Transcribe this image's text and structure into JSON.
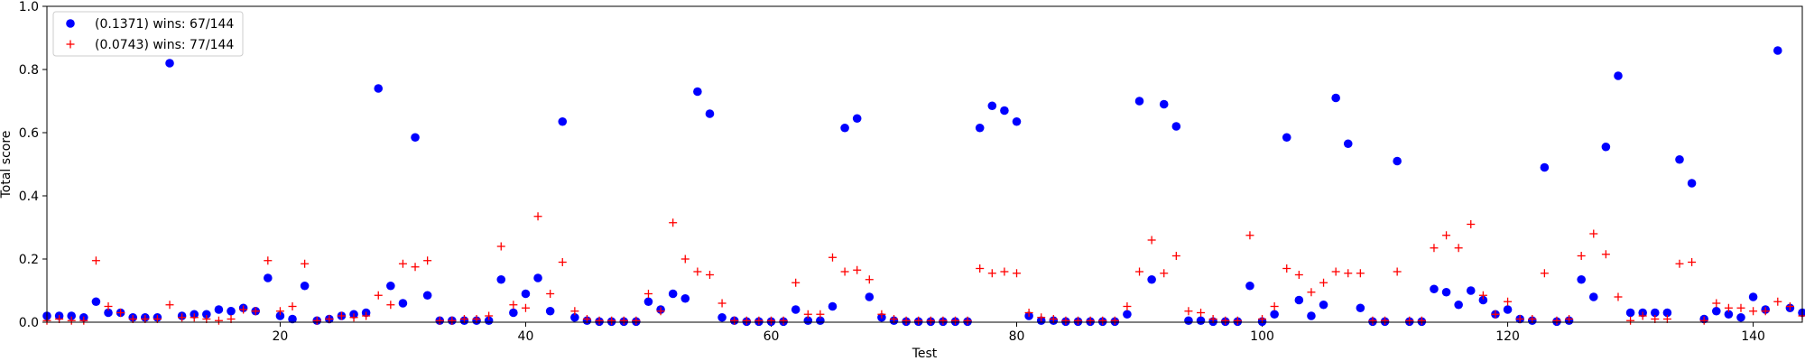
{
  "chart_data": {
    "type": "scatter",
    "title": "",
    "xlabel": "Test",
    "ylabel": "Total score",
    "xlim": [
      1,
      144
    ],
    "ylim": [
      0,
      1.0
    ],
    "xticks": [
      20,
      40,
      60,
      80,
      100,
      120,
      140
    ],
    "yticks": [
      0.0,
      0.2,
      0.4,
      0.6,
      0.8,
      1.0
    ],
    "ytick_labels": [
      "0.0",
      "0.2",
      "0.4",
      "0.6",
      "0.8",
      "1.0"
    ],
    "grid": false,
    "legend": "top-left",
    "series": [
      {
        "name": "(0.1371) wins: 67/144",
        "marker": "circle",
        "color": "#0000ff",
        "x": [
          1,
          2,
          3,
          4,
          5,
          6,
          7,
          8,
          9,
          10,
          11,
          12,
          13,
          14,
          15,
          16,
          17,
          18,
          19,
          20,
          21,
          22,
          23,
          24,
          25,
          26,
          27,
          28,
          29,
          30,
          31,
          32,
          33,
          34,
          35,
          36,
          37,
          38,
          39,
          40,
          41,
          42,
          43,
          44,
          45,
          46,
          47,
          48,
          49,
          50,
          51,
          52,
          53,
          54,
          55,
          56,
          57,
          58,
          59,
          60,
          61,
          62,
          63,
          64,
          65,
          66,
          67,
          68,
          69,
          70,
          71,
          72,
          73,
          74,
          75,
          76,
          77,
          78,
          79,
          80,
          81,
          82,
          83,
          84,
          85,
          86,
          87,
          88,
          89,
          90,
          91,
          92,
          93,
          94,
          95,
          96,
          97,
          98,
          99,
          100,
          101,
          102,
          103,
          104,
          105,
          106,
          107,
          108,
          109,
          110,
          111,
          112,
          113,
          114,
          115,
          116,
          117,
          118,
          119,
          120,
          121,
          122,
          123,
          124,
          125,
          126,
          127,
          128,
          129,
          130,
          131,
          132,
          133,
          134,
          135,
          136,
          137,
          138,
          139,
          140,
          141,
          142,
          143,
          144
        ],
        "y": [
          0.02,
          0.02,
          0.02,
          0.015,
          0.065,
          0.03,
          0.03,
          0.015,
          0.015,
          0.015,
          0.82,
          0.02,
          0.025,
          0.025,
          0.04,
          0.035,
          0.045,
          0.035,
          0.14,
          0.02,
          0.01,
          0.115,
          0.005,
          0.01,
          0.02,
          0.025,
          0.03,
          0.74,
          0.115,
          0.06,
          0.585,
          0.085,
          0.005,
          0.005,
          0.005,
          0.005,
          0.005,
          0.135,
          0.03,
          0.09,
          0.14,
          0.035,
          0.635,
          0.015,
          0.005,
          0.002,
          0.002,
          0.002,
          0.002,
          0.065,
          0.04,
          0.09,
          0.075,
          0.73,
          0.66,
          0.015,
          0.005,
          0.002,
          0.002,
          0.002,
          0.002,
          0.04,
          0.005,
          0.005,
          0.05,
          0.615,
          0.645,
          0.08,
          0.015,
          0.005,
          0.002,
          0.002,
          0.002,
          0.002,
          0.002,
          0.002,
          0.615,
          0.685,
          0.67,
          0.635,
          0.02,
          0.005,
          0.005,
          0.002,
          0.002,
          0.002,
          0.002,
          0.002,
          0.025,
          0.7,
          0.135,
          0.69,
          0.62,
          0.005,
          0.005,
          0.002,
          0.002,
          0.002,
          0.115,
          0.002,
          0.025,
          0.585,
          0.07,
          0.02,
          0.055,
          0.71,
          0.565,
          0.045,
          0.002,
          0.002,
          0.51,
          0.002,
          0.002,
          0.105,
          0.095,
          0.055,
          0.1,
          0.07,
          0.025,
          0.04,
          0.01,
          0.005,
          0.49,
          0.002,
          0.005,
          0.135,
          0.08,
          0.555,
          0.78,
          0.03,
          0.03,
          0.03,
          0.03,
          0.515,
          0.44,
          0.01,
          0.035,
          0.025,
          0.015,
          0.08,
          0.04,
          0.86,
          0.045,
          0.03
        ]
      },
      {
        "name": "(0.0743) wins: 77/144",
        "marker": "plus",
        "color": "#ff0000",
        "x": [
          1,
          2,
          3,
          4,
          5,
          6,
          7,
          8,
          9,
          10,
          11,
          12,
          13,
          14,
          15,
          16,
          17,
          18,
          19,
          20,
          21,
          22,
          23,
          24,
          25,
          26,
          27,
          28,
          29,
          30,
          31,
          32,
          33,
          34,
          35,
          36,
          37,
          38,
          39,
          40,
          41,
          42,
          43,
          44,
          45,
          46,
          47,
          48,
          49,
          50,
          51,
          52,
          53,
          54,
          55,
          56,
          57,
          58,
          59,
          60,
          61,
          62,
          63,
          64,
          65,
          66,
          67,
          68,
          69,
          70,
          71,
          72,
          73,
          74,
          75,
          76,
          77,
          78,
          79,
          80,
          81,
          82,
          83,
          84,
          85,
          86,
          87,
          88,
          89,
          90,
          91,
          92,
          93,
          94,
          95,
          96,
          97,
          98,
          99,
          100,
          101,
          102,
          103,
          104,
          105,
          106,
          107,
          108,
          109,
          110,
          111,
          112,
          113,
          114,
          115,
          116,
          117,
          118,
          119,
          120,
          121,
          122,
          123,
          124,
          125,
          126,
          127,
          128,
          129,
          130,
          131,
          132,
          133,
          134,
          135,
          136,
          137,
          138,
          139,
          140,
          141,
          142,
          143,
          144
        ],
        "y": [
          0.005,
          0.01,
          0.005,
          0.005,
          0.195,
          0.05,
          0.03,
          0.01,
          0.01,
          0.01,
          0.055,
          0.015,
          0.015,
          0.01,
          0.005,
          0.01,
          0.04,
          0.035,
          0.195,
          0.035,
          0.05,
          0.185,
          0.005,
          0.01,
          0.02,
          0.015,
          0.02,
          0.085,
          0.055,
          0.185,
          0.175,
          0.195,
          0.005,
          0.005,
          0.01,
          0.01,
          0.02,
          0.24,
          0.055,
          0.045,
          0.335,
          0.09,
          0.19,
          0.035,
          0.01,
          0.005,
          0.005,
          0.005,
          0.005,
          0.09,
          0.035,
          0.315,
          0.2,
          0.16,
          0.15,
          0.06,
          0.005,
          0.005,
          0.005,
          0.005,
          0.005,
          0.125,
          0.025,
          0.025,
          0.205,
          0.16,
          0.165,
          0.135,
          0.025,
          0.01,
          0.005,
          0.005,
          0.005,
          0.005,
          0.005,
          0.005,
          0.17,
          0.155,
          0.16,
          0.155,
          0.03,
          0.015,
          0.01,
          0.005,
          0.005,
          0.005,
          0.005,
          0.005,
          0.05,
          0.16,
          0.26,
          0.155,
          0.21,
          0.035,
          0.03,
          0.01,
          0.005,
          0.005,
          0.275,
          0.01,
          0.05,
          0.17,
          0.15,
          0.095,
          0.125,
          0.16,
          0.155,
          0.155,
          0.005,
          0.005,
          0.16,
          0.005,
          0.005,
          0.235,
          0.275,
          0.235,
          0.31,
          0.085,
          0.025,
          0.065,
          0.01,
          0.01,
          0.155,
          0.005,
          0.01,
          0.21,
          0.28,
          0.215,
          0.08,
          0.005,
          0.02,
          0.01,
          0.01,
          0.185,
          0.19,
          0.005,
          0.06,
          0.045,
          0.045,
          0.035,
          0.035,
          0.065,
          0.05,
          0.02
        ]
      }
    ]
  }
}
